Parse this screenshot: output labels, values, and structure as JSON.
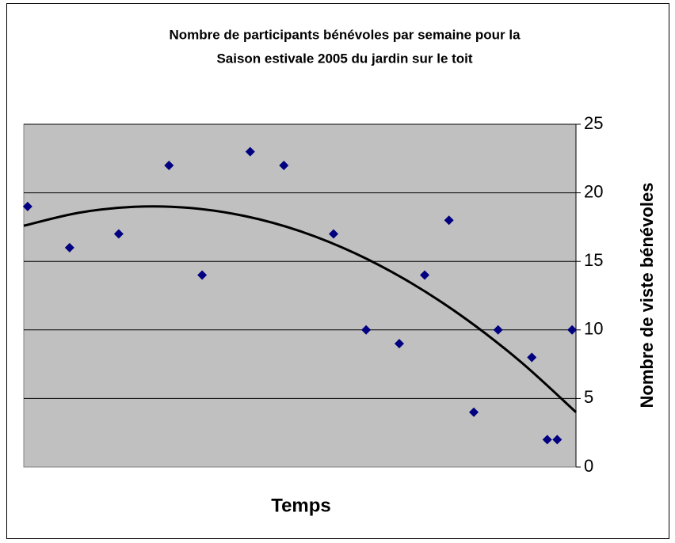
{
  "chart_data": {
    "type": "scatter",
    "title": [
      "Nombre de participants bénévoles par semaine pour la",
      "Saison estivale 2005 du jardin sur le toit"
    ],
    "x_label": "Temps",
    "y_label": "Nombre de viste bénévoles",
    "xlim": [
      0,
      100
    ],
    "ylim": [
      0,
      25
    ],
    "yticks": [
      0,
      5,
      10,
      15,
      20,
      25
    ],
    "grid": true,
    "y_axis_side": "right",
    "points": {
      "color": "#000080",
      "x": [
        0.7,
        8.3,
        17.2,
        26.3,
        32.3,
        41.0,
        47.1,
        56.1,
        62.0,
        68.0,
        72.6,
        77.0,
        81.5,
        85.9,
        92.0,
        94.8,
        96.6,
        99.3
      ],
      "values": [
        19,
        16,
        17,
        22,
        14,
        23,
        22,
        17,
        10,
        9,
        14,
        18,
        4,
        10,
        8,
        2,
        2,
        10
      ]
    },
    "trendline": {
      "color": "#000000",
      "x": [
        0,
        10,
        20,
        30,
        40,
        50,
        60,
        70,
        80,
        90,
        100
      ],
      "values": [
        17.6,
        18.55,
        18.98,
        18.9,
        18.31,
        17.21,
        15.59,
        13.46,
        10.82,
        7.67,
        4.0
      ]
    }
  }
}
